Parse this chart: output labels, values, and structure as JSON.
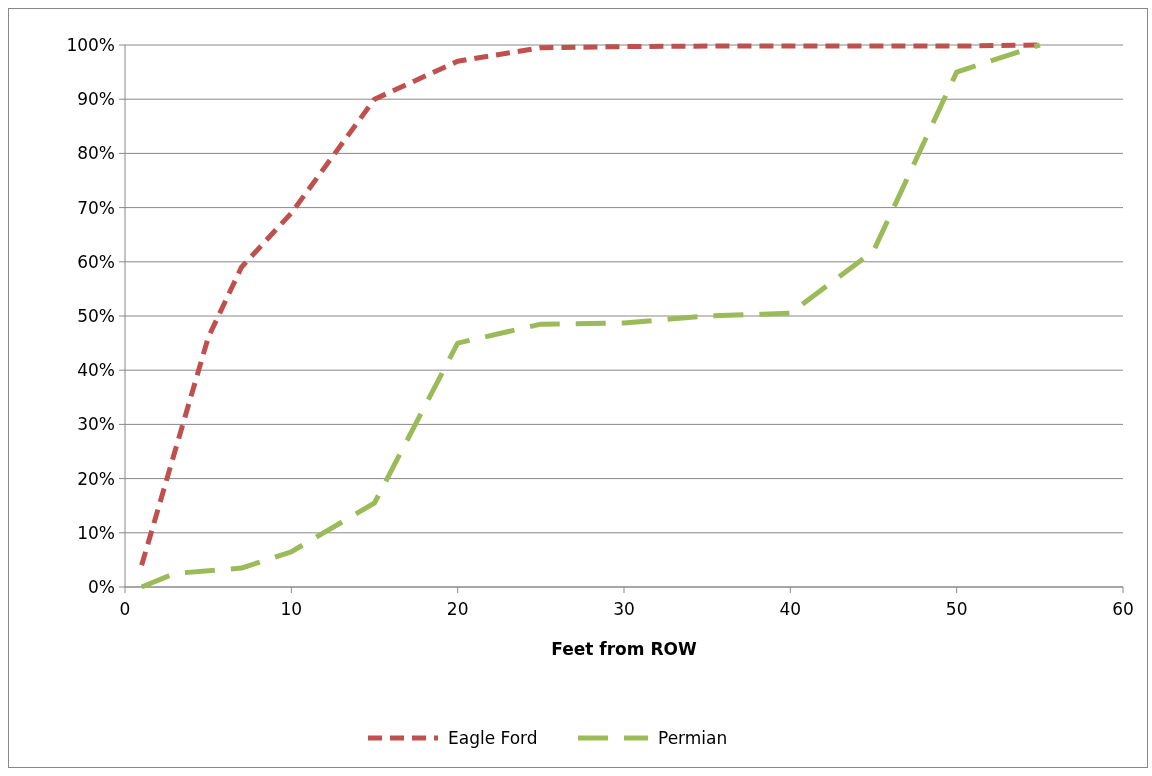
{
  "chart_data": {
    "type": "line",
    "xlabel": "Feet from ROW",
    "xlim": [
      0,
      60
    ],
    "xticks": [
      0,
      10,
      20,
      30,
      40,
      50,
      60
    ],
    "ylim": [
      0,
      100
    ],
    "yticks": [
      {
        "value": 0,
        "label": "0%"
      },
      {
        "value": 10,
        "label": "10%"
      },
      {
        "value": 20,
        "label": "20%"
      },
      {
        "value": 30,
        "label": "30%"
      },
      {
        "value": 40,
        "label": "40%"
      },
      {
        "value": 50,
        "label": "50%"
      },
      {
        "value": 60,
        "label": "60%"
      },
      {
        "value": 70,
        "label": "70%"
      },
      {
        "value": 80,
        "label": "80%"
      },
      {
        "value": 90,
        "label": "90%"
      },
      {
        "value": 100,
        "label": "100%"
      }
    ],
    "grid": "y",
    "legend": "bottom",
    "marker": "none",
    "line_style": "dashed",
    "series": [
      {
        "name": "Eagle Ford",
        "color": "#c0504d",
        "x": [
          1,
          5,
          7,
          10,
          15,
          20,
          25,
          30,
          35,
          40,
          45,
          50,
          55
        ],
        "values": [
          4,
          46,
          59,
          69,
          90,
          97,
          99.5,
          99.7,
          99.8,
          99.8,
          99.8,
          99.8,
          100
        ]
      },
      {
        "name": "Permian",
        "color": "#9bbb59",
        "x": [
          1,
          3,
          7,
          10,
          15,
          20,
          25,
          30,
          35,
          40,
          45,
          50,
          55
        ],
        "values": [
          0,
          2.5,
          3.5,
          6.5,
          15.5,
          45,
          48.5,
          48.7,
          50,
          50.5,
          62,
          95,
          100
        ]
      }
    ]
  }
}
